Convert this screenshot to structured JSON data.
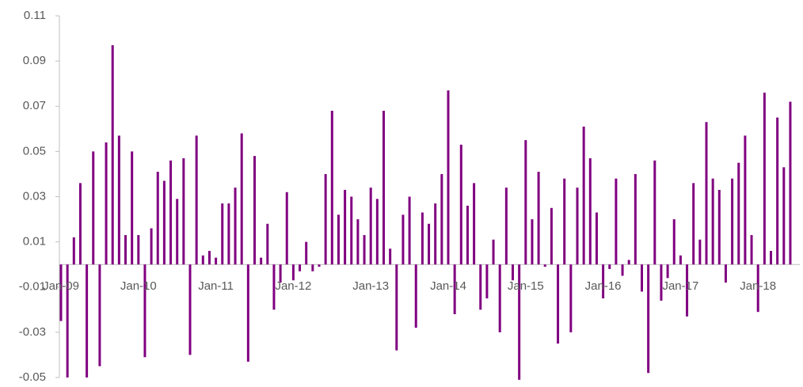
{
  "chart_data": {
    "type": "bar",
    "categories": [
      "Jan-09",
      null,
      null,
      null,
      null,
      null,
      null,
      null,
      null,
      null,
      null,
      null,
      "Jan-10",
      null,
      null,
      null,
      null,
      null,
      null,
      null,
      null,
      null,
      null,
      null,
      "Jan-11",
      null,
      null,
      null,
      null,
      null,
      null,
      null,
      null,
      null,
      null,
      null,
      "Jan-12",
      null,
      null,
      null,
      null,
      null,
      null,
      null,
      null,
      null,
      null,
      null,
      "Jan-13",
      null,
      null,
      null,
      null,
      null,
      null,
      null,
      null,
      null,
      null,
      null,
      "Jan-14",
      null,
      null,
      null,
      null,
      null,
      null,
      null,
      null,
      null,
      null,
      null,
      "Jan-15",
      null,
      null,
      null,
      null,
      null,
      null,
      null,
      null,
      null,
      null,
      null,
      "Jan-16",
      null,
      null,
      null,
      null,
      null,
      null,
      null,
      null,
      null,
      null,
      null,
      "Jan-17",
      null,
      null,
      null,
      null,
      null,
      null,
      null,
      null,
      null,
      null,
      null,
      "Jan-18",
      null,
      null,
      null,
      null,
      null
    ],
    "values": [
      -0.025,
      -0.05,
      0.012,
      0.036,
      -0.05,
      0.05,
      -0.045,
      0.054,
      0.097,
      0.057,
      0.013,
      0.05,
      0.013,
      -0.041,
      0.016,
      0.041,
      0.037,
      0.046,
      0.029,
      0.047,
      -0.04,
      0.057,
      0.004,
      0.006,
      0.003,
      0.027,
      0.027,
      0.034,
      0.058,
      -0.043,
      0.048,
      0.003,
      0.018,
      -0.02,
      -0.008,
      0.032,
      -0.007,
      -0.003,
      0.01,
      -0.003,
      -0.001,
      0.04,
      0.068,
      0.022,
      0.033,
      0.03,
      0.02,
      0.013,
      0.034,
      0.029,
      0.068,
      0.007,
      -0.038,
      0.022,
      0.03,
      -0.028,
      0.023,
      0.018,
      0.027,
      0.04,
      0.077,
      -0.022,
      0.053,
      0.026,
      0.036,
      -0.02,
      -0.015,
      0.011,
      -0.03,
      0.034,
      -0.007,
      -0.051,
      0.055,
      0.02,
      0.041,
      -0.001,
      0.025,
      -0.035,
      0.038,
      -0.03,
      0.034,
      0.061,
      0.047,
      0.023,
      -0.015,
      -0.002,
      0.038,
      -0.005,
      0.002,
      0.04,
      -0.012,
      -0.048,
      0.046,
      -0.016,
      -0.006,
      0.02,
      0.004,
      -0.023,
      0.036,
      0.011,
      0.063,
      0.038,
      0.033,
      -0.008,
      0.038,
      0.045,
      0.057,
      0.013,
      -0.021,
      0.076,
      0.006,
      0.065,
      0.043,
      0.072
    ],
    "color": "#800080",
    "ylim": [
      -0.05,
      0.11
    ],
    "yticks": [
      -0.05,
      -0.03,
      -0.01,
      0.01,
      0.03,
      0.05,
      0.07,
      0.09,
      0.11
    ],
    "grid": false
  }
}
